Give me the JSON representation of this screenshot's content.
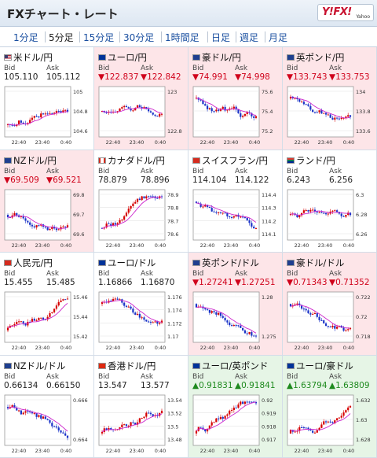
{
  "header": {
    "title": "FXチャート・レート",
    "logo": "Y!FX!",
    "logo_sub": "Yahoo"
  },
  "tabs": [
    "1分足",
    "5分足",
    "15分足",
    "30分足",
    "1時間足",
    "日足",
    "週足",
    "月足"
  ],
  "active_tab": 1,
  "labels": {
    "bid": "Bid",
    "ask": "Ask"
  },
  "colors": {
    "up": "#d60000",
    "down": "#1b34c8",
    "ma": "#cc22cc",
    "pink_bg": "#fde5e8",
    "green_bg": "#e6f5e6",
    "price_down": "#d0021b",
    "price_up": "#1e8a1e"
  },
  "cards": [
    {
      "pair": "米ドル/円",
      "flag": "us",
      "bg": "white",
      "dir": "none",
      "bid": "105.110",
      "ask": "105.112",
      "yticks": [
        "105",
        "104.8",
        "104.6"
      ],
      "xticks": [
        "22:40",
        "23:40",
        "0:40"
      ],
      "trend": "up",
      "seed": 1
    },
    {
      "pair": "ユーロ/円",
      "flag": "eu",
      "bg": "pink",
      "dir": "down",
      "bid": "▼122.837",
      "ask": "▼122.842",
      "yticks": [
        "123",
        "122.8"
      ],
      "xticks": [
        "22:40",
        "23:40",
        "0:40"
      ],
      "trend": "flat",
      "seed": 2
    },
    {
      "pair": "豪ドル/円",
      "flag": "au",
      "bg": "pink",
      "dir": "down",
      "bid": "▼74.991",
      "ask": "▼74.998",
      "yticks": [
        "75.6",
        "75.4",
        "75.2"
      ],
      "xticks": [
        "22:40",
        "23:40",
        "0:40"
      ],
      "trend": "down",
      "seed": 3
    },
    {
      "pair": "英ポンド/円",
      "flag": "gb",
      "bg": "pink",
      "dir": "down",
      "bid": "▼133.743",
      "ask": "▼133.753",
      "yticks": [
        "134",
        "133.8",
        "133.6"
      ],
      "xticks": [
        "22:40",
        "23:40",
        "0:40"
      ],
      "trend": "down",
      "seed": 4
    },
    {
      "pair": "NZドル/円",
      "flag": "nz",
      "bg": "pink",
      "dir": "down",
      "bid": "▼69.509",
      "ask": "▼69.521",
      "yticks": [
        "69.8",
        "69.7",
        "69.6"
      ],
      "xticks": [
        "22:40",
        "23:40",
        "0:40"
      ],
      "trend": "flat",
      "seed": 5
    },
    {
      "pair": "カナダドル/円",
      "flag": "ca",
      "bg": "white",
      "dir": "none",
      "bid": "78.879",
      "ask": "78.896",
      "yticks": [
        "78.9",
        "78.8",
        "78.7",
        "78.6"
      ],
      "xticks": [
        "22:40",
        "23:40",
        "0:40"
      ],
      "trend": "up",
      "seed": 6
    },
    {
      "pair": "スイスフラン/円",
      "flag": "ch",
      "bg": "white",
      "dir": "none",
      "bid": "114.104",
      "ask": "114.122",
      "yticks": [
        "114.4",
        "114.3",
        "114.2",
        "114.1"
      ],
      "xticks": [
        "22:40",
        "23:40",
        "0:40"
      ],
      "trend": "down",
      "seed": 7
    },
    {
      "pair": "ランド/円",
      "flag": "za",
      "bg": "white",
      "dir": "none",
      "bid": "6.243",
      "ask": "6.256",
      "yticks": [
        "6.3",
        "6.28",
        "6.26"
      ],
      "xticks": [
        "22:40",
        "23:40",
        "0:40"
      ],
      "trend": "flat",
      "seed": 8
    },
    {
      "pair": "人民元/円",
      "flag": "cn",
      "bg": "white",
      "dir": "none",
      "bid": "15.455",
      "ask": "15.485",
      "yticks": [
        "15.46",
        "15.44",
        "15.42"
      ],
      "xticks": [
        "22:40",
        "23:40",
        "0:40"
      ],
      "trend": "up",
      "seed": 9
    },
    {
      "pair": "ユーロ/ドル",
      "flag": "eu",
      "bg": "white",
      "dir": "none",
      "bid": "1.16866",
      "ask": "1.16870",
      "yticks": [
        "1.176",
        "1.174",
        "1.172",
        "1.17"
      ],
      "xticks": [
        "22:40",
        "23:40",
        "0:40"
      ],
      "trend": "down",
      "seed": 10
    },
    {
      "pair": "英ポンド/ドル",
      "flag": "gb",
      "bg": "pink",
      "dir": "down",
      "bid": "▼1.27241",
      "ask": "▼1.27251",
      "yticks": [
        "1.28",
        "1.275"
      ],
      "xticks": [
        "22:40",
        "23:40",
        "0:40"
      ],
      "trend": "down",
      "seed": 11
    },
    {
      "pair": "豪ドル/ドル",
      "flag": "au",
      "bg": "pink",
      "dir": "down",
      "bid": "▼0.71343",
      "ask": "▼0.71352",
      "yticks": [
        "0.722",
        "0.72",
        "0.718"
      ],
      "xticks": [
        "22:40",
        "23:40",
        "0:40"
      ],
      "trend": "down",
      "seed": 12
    },
    {
      "pair": "NZドル/ドル",
      "flag": "nz",
      "bg": "white",
      "dir": "none",
      "bid": "0.66134",
      "ask": "0.66150",
      "yticks": [
        "0.666",
        "0.664"
      ],
      "xticks": [
        "22:40",
        "23:40",
        "0:40"
      ],
      "trend": "down",
      "seed": 13
    },
    {
      "pair": "香港ドル/円",
      "flag": "hk",
      "bg": "white",
      "dir": "none",
      "bid": "13.547",
      "ask": "13.577",
      "yticks": [
        "13.54",
        "13.52",
        "13.5",
        "13.48"
      ],
      "xticks": [
        "22:40",
        "23:40",
        "0:40"
      ],
      "trend": "up",
      "seed": 14
    },
    {
      "pair": "ユーロ/英ポンド",
      "flag": "eu",
      "bg": "green",
      "dir": "up",
      "bid": "▲0.91831",
      "ask": "▲0.91841",
      "yticks": [
        "0.92",
        "0.919",
        "0.918",
        "0.917"
      ],
      "xticks": [
        "22:40",
        "23:40",
        "0:40"
      ],
      "trend": "up",
      "seed": 15
    },
    {
      "pair": "ユーロ/豪ドル",
      "flag": "eu",
      "bg": "green",
      "dir": "up",
      "bid": "▲1.63794",
      "ask": "▲1.63809",
      "yticks": [
        "1.632",
        "1.63",
        "1.628"
      ],
      "xticks": [
        "22:40",
        "23:40",
        "0:40"
      ],
      "trend": "up",
      "seed": 16
    }
  ]
}
